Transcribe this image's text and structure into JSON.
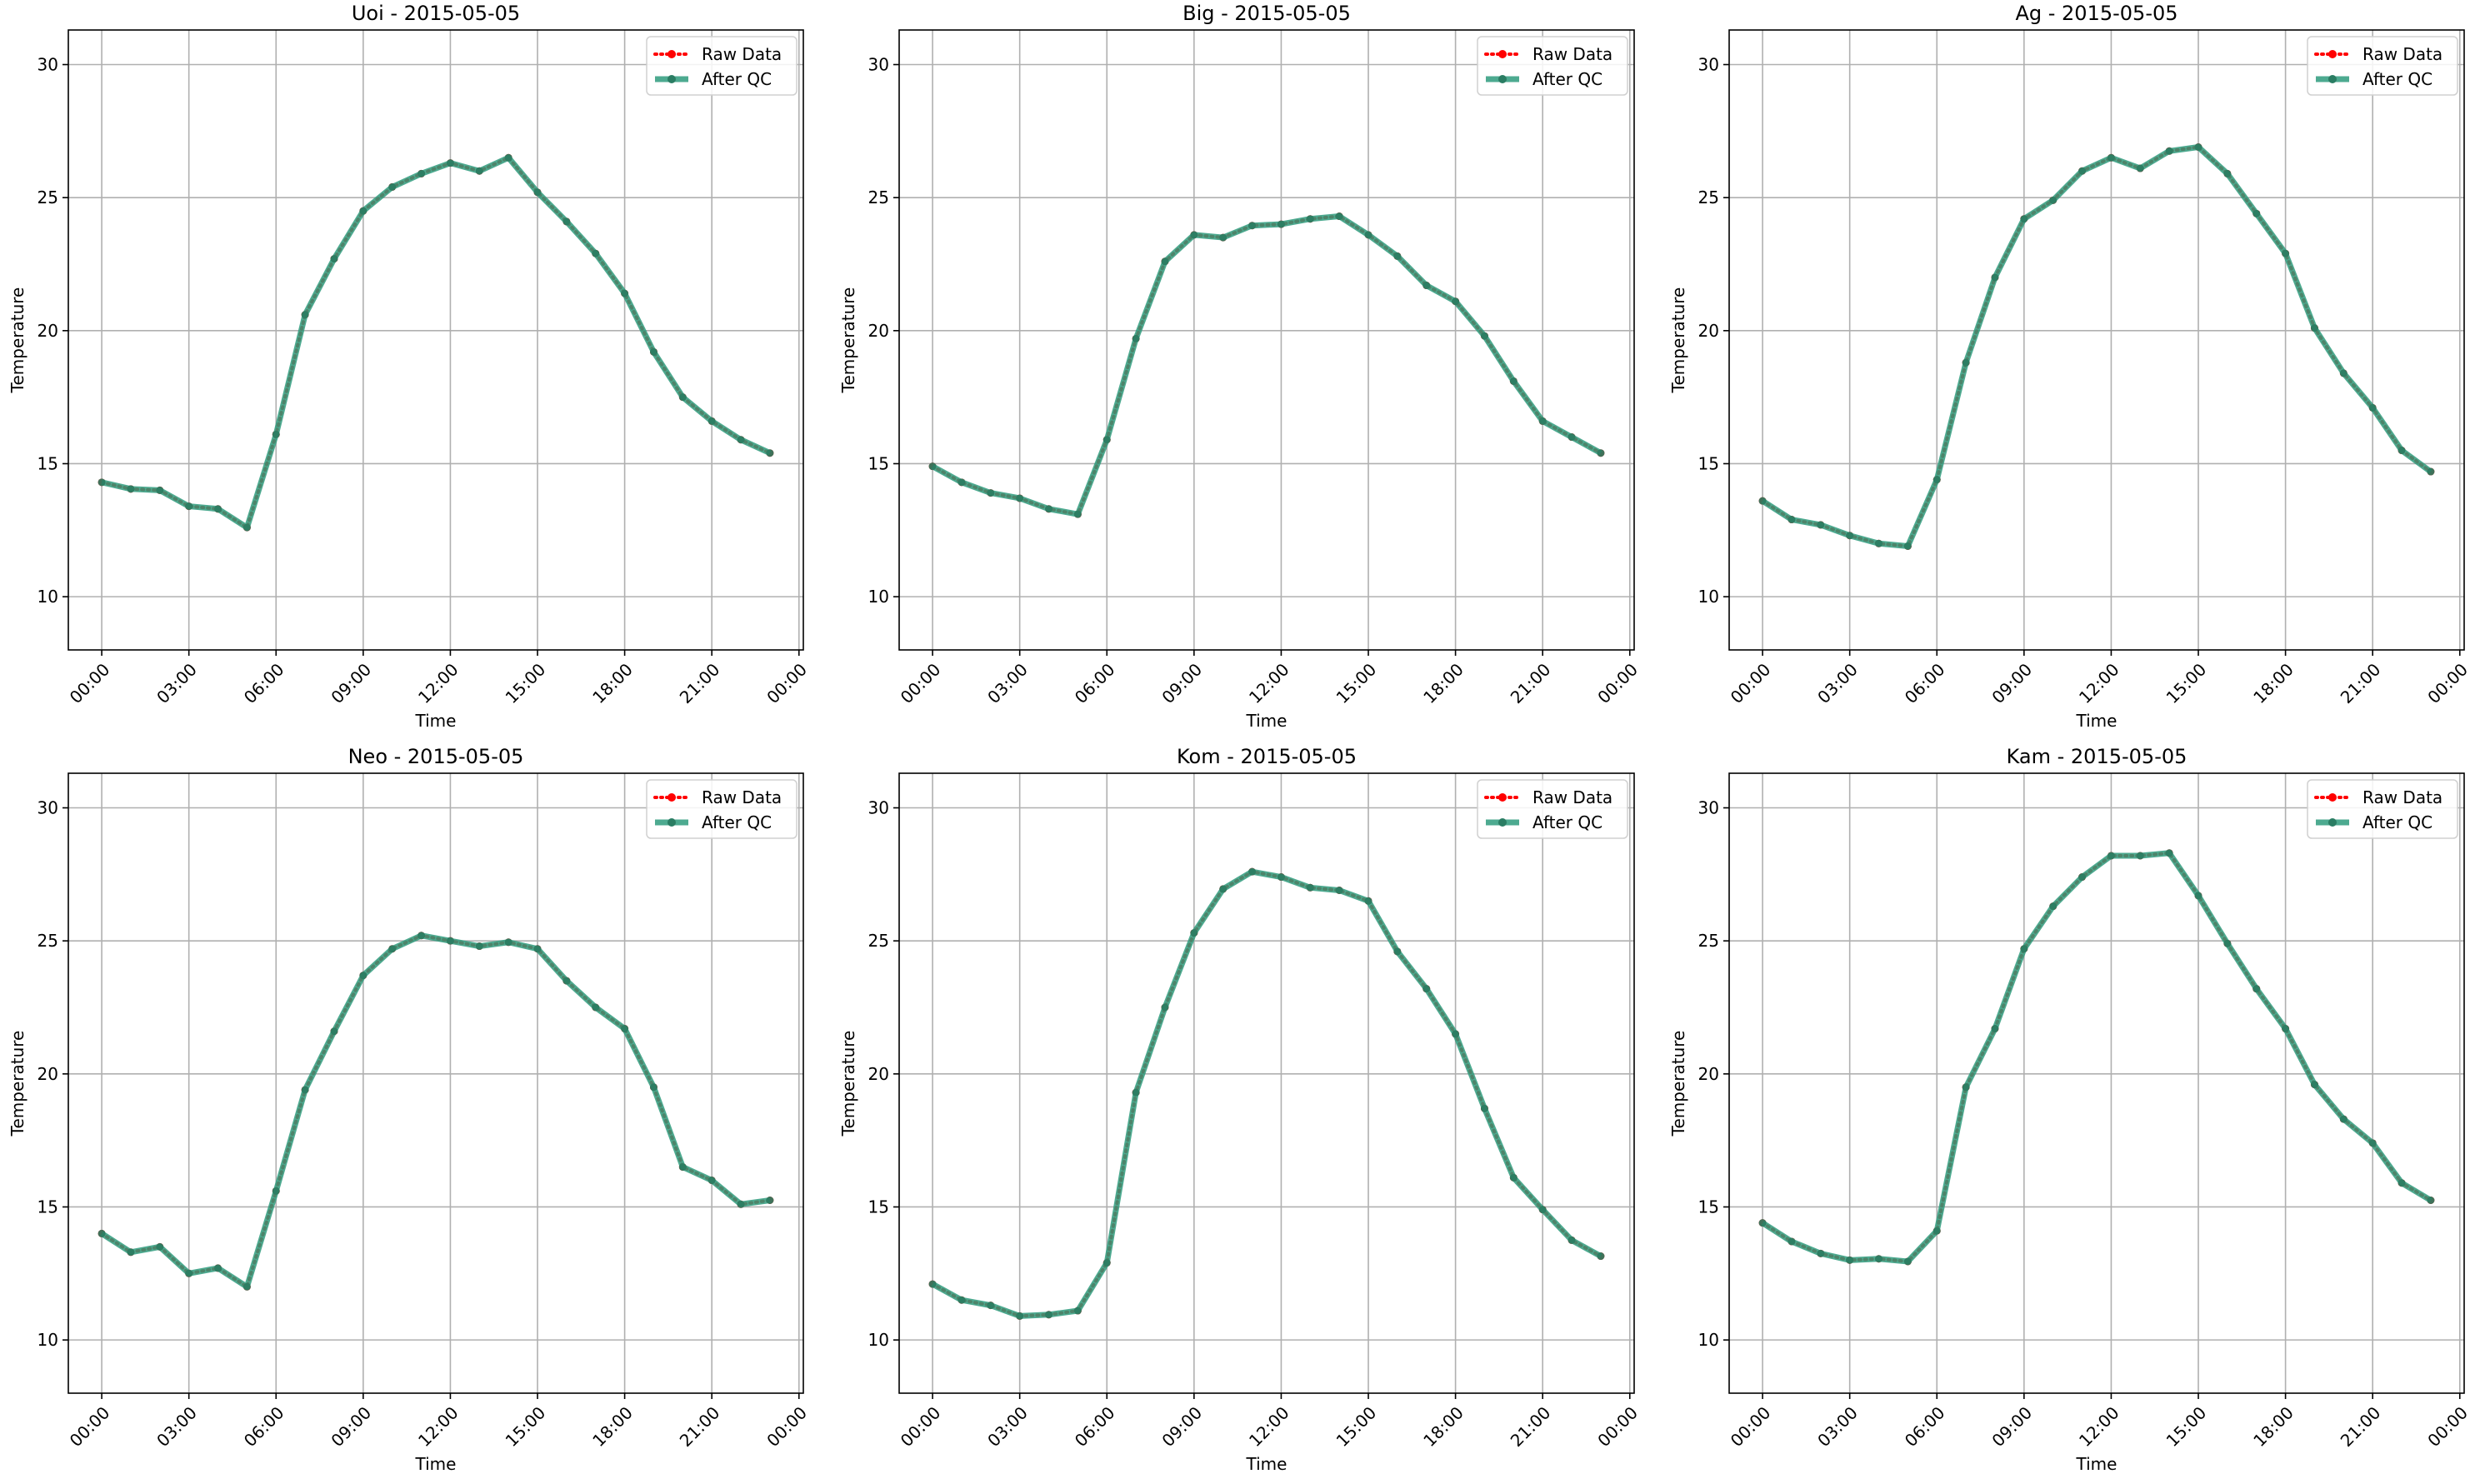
{
  "chart_data": [
    {
      "type": "line",
      "title": "Uoi - 2015-05-05",
      "xlabel": "Time",
      "ylabel": "Temperature",
      "x_ticks": [
        "00:00",
        "03:00",
        "06:00",
        "09:00",
        "12:00",
        "15:00",
        "18:00",
        "21:00",
        "00:00"
      ],
      "y_ticks": [
        "10",
        "15",
        "20",
        "25",
        "30"
      ],
      "ylim": [
        8,
        31.3
      ],
      "xlim_hours": [
        -1.15,
        24.15
      ],
      "grid": true,
      "legend": "top-right",
      "series": [
        {
          "name": "Raw Data",
          "color": "#ff0000",
          "style": "dotted",
          "x": [
            0,
            1,
            2,
            3,
            4,
            5,
            6,
            7,
            8,
            9,
            10,
            11,
            12,
            13,
            14,
            15,
            16,
            17,
            18,
            19,
            20,
            21,
            22,
            23
          ],
          "values": [
            14.3,
            14.05,
            14.0,
            13.4,
            13.3,
            12.6,
            16.1,
            20.6,
            22.7,
            24.5,
            25.4,
            25.9,
            26.3,
            26.0,
            26.5,
            25.2,
            24.1,
            22.9,
            21.4,
            19.2,
            17.5,
            16.6,
            15.9,
            15.4
          ]
        },
        {
          "name": "After QC",
          "color": "#2e9b7c",
          "style": "solid",
          "x": [
            0,
            1,
            2,
            3,
            4,
            5,
            6,
            7,
            8,
            9,
            10,
            11,
            12,
            13,
            14,
            15,
            16,
            17,
            18,
            19,
            20,
            21,
            22,
            23
          ],
          "values": [
            14.3,
            14.05,
            14.0,
            13.4,
            13.3,
            12.6,
            16.1,
            20.6,
            22.7,
            24.5,
            25.4,
            25.9,
            26.3,
            26.0,
            26.5,
            25.2,
            24.1,
            22.9,
            21.4,
            19.2,
            17.5,
            16.6,
            15.9,
            15.4
          ]
        }
      ]
    },
    {
      "type": "line",
      "title": "Big - 2015-05-05",
      "xlabel": "Time",
      "ylabel": "Temperature",
      "x_ticks": [
        "00:00",
        "03:00",
        "06:00",
        "09:00",
        "12:00",
        "15:00",
        "18:00",
        "21:00",
        "00:00"
      ],
      "y_ticks": [
        "10",
        "15",
        "20",
        "25",
        "30"
      ],
      "ylim": [
        8,
        31.3
      ],
      "xlim_hours": [
        -1.15,
        24.15
      ],
      "grid": true,
      "legend": "top-right",
      "series": [
        {
          "name": "Raw Data",
          "color": "#ff0000",
          "style": "dotted",
          "x": [
            0,
            1,
            2,
            3,
            4,
            5,
            6,
            7,
            8,
            9,
            10,
            11,
            12,
            13,
            14,
            15,
            16,
            17,
            18,
            19,
            20,
            21,
            22,
            23
          ],
          "values": [
            14.9,
            14.3,
            13.9,
            13.7,
            13.3,
            13.1,
            15.9,
            19.7,
            22.6,
            23.6,
            23.5,
            23.95,
            24.0,
            24.2,
            24.3,
            23.6,
            22.8,
            21.7,
            21.1,
            19.8,
            18.1,
            16.6,
            16.0,
            15.4
          ]
        },
        {
          "name": "After QC",
          "color": "#2e9b7c",
          "style": "solid",
          "x": [
            0,
            1,
            2,
            3,
            4,
            5,
            6,
            7,
            8,
            9,
            10,
            11,
            12,
            13,
            14,
            15,
            16,
            17,
            18,
            19,
            20,
            21,
            22,
            23
          ],
          "values": [
            14.9,
            14.3,
            13.9,
            13.7,
            13.3,
            13.1,
            15.9,
            19.7,
            22.6,
            23.6,
            23.5,
            23.95,
            24.0,
            24.2,
            24.3,
            23.6,
            22.8,
            21.7,
            21.1,
            19.8,
            18.1,
            16.6,
            16.0,
            15.4
          ]
        }
      ]
    },
    {
      "type": "line",
      "title": "Ag - 2015-05-05",
      "xlabel": "Time",
      "ylabel": "Temperature",
      "x_ticks": [
        "00:00",
        "03:00",
        "06:00",
        "09:00",
        "12:00",
        "15:00",
        "18:00",
        "21:00",
        "00:00"
      ],
      "y_ticks": [
        "10",
        "15",
        "20",
        "25",
        "30"
      ],
      "ylim": [
        8,
        31.3
      ],
      "xlim_hours": [
        -1.15,
        24.15
      ],
      "grid": true,
      "legend": "top-right",
      "series": [
        {
          "name": "Raw Data",
          "color": "#ff0000",
          "style": "dotted",
          "x": [
            0,
            1,
            2,
            3,
            4,
            5,
            6,
            7,
            8,
            9,
            10,
            11,
            12,
            13,
            14,
            15,
            16,
            17,
            18,
            19,
            20,
            21,
            22,
            23
          ],
          "values": [
            13.6,
            12.9,
            12.7,
            12.3,
            12.0,
            11.9,
            14.4,
            18.8,
            22.0,
            24.2,
            24.9,
            26.0,
            26.5,
            26.1,
            26.75,
            26.9,
            25.9,
            24.4,
            22.9,
            20.1,
            18.4,
            17.1,
            15.5,
            14.7
          ]
        },
        {
          "name": "After QC",
          "color": "#2e9b7c",
          "style": "solid",
          "x": [
            0,
            1,
            2,
            3,
            4,
            5,
            6,
            7,
            8,
            9,
            10,
            11,
            12,
            13,
            14,
            15,
            16,
            17,
            18,
            19,
            20,
            21,
            22,
            23
          ],
          "values": [
            13.6,
            12.9,
            12.7,
            12.3,
            12.0,
            11.9,
            14.4,
            18.8,
            22.0,
            24.2,
            24.9,
            26.0,
            26.5,
            26.1,
            26.75,
            26.9,
            25.9,
            24.4,
            22.9,
            20.1,
            18.4,
            17.1,
            15.5,
            14.7
          ]
        }
      ]
    },
    {
      "type": "line",
      "title": "Neo - 2015-05-05",
      "xlabel": "Time",
      "ylabel": "Temperature",
      "x_ticks": [
        "00:00",
        "03:00",
        "06:00",
        "09:00",
        "12:00",
        "15:00",
        "18:00",
        "21:00",
        "00:00"
      ],
      "y_ticks": [
        "10",
        "15",
        "20",
        "25",
        "30"
      ],
      "ylim": [
        8,
        31.3
      ],
      "xlim_hours": [
        -1.15,
        24.15
      ],
      "grid": true,
      "legend": "top-right",
      "series": [
        {
          "name": "Raw Data",
          "color": "#ff0000",
          "style": "dotted",
          "x": [
            0,
            1,
            2,
            3,
            4,
            5,
            6,
            7,
            8,
            9,
            10,
            11,
            12,
            13,
            14,
            15,
            16,
            17,
            18,
            19,
            20,
            21,
            22,
            23
          ],
          "values": [
            14.0,
            13.3,
            13.5,
            12.5,
            12.7,
            12.0,
            15.6,
            19.4,
            21.6,
            23.7,
            24.7,
            25.2,
            25.0,
            24.8,
            24.95,
            24.7,
            23.5,
            22.5,
            21.7,
            19.5,
            16.5,
            16.0,
            15.1,
            15.25
          ]
        },
        {
          "name": "After QC",
          "color": "#2e9b7c",
          "style": "solid",
          "x": [
            0,
            1,
            2,
            3,
            4,
            5,
            6,
            7,
            8,
            9,
            10,
            11,
            12,
            13,
            14,
            15,
            16,
            17,
            18,
            19,
            20,
            21,
            22,
            23
          ],
          "values": [
            14.0,
            13.3,
            13.5,
            12.5,
            12.7,
            12.0,
            15.6,
            19.4,
            21.6,
            23.7,
            24.7,
            25.2,
            25.0,
            24.8,
            24.95,
            24.7,
            23.5,
            22.5,
            21.7,
            19.5,
            16.5,
            16.0,
            15.1,
            15.25
          ]
        }
      ]
    },
    {
      "type": "line",
      "title": "Kom - 2015-05-05",
      "xlabel": "Time",
      "ylabel": "Temperature",
      "x_ticks": [
        "00:00",
        "03:00",
        "06:00",
        "09:00",
        "12:00",
        "15:00",
        "18:00",
        "21:00",
        "00:00"
      ],
      "y_ticks": [
        "10",
        "15",
        "20",
        "25",
        "30"
      ],
      "ylim": [
        8,
        31.3
      ],
      "xlim_hours": [
        -1.15,
        24.15
      ],
      "grid": true,
      "legend": "top-right",
      "series": [
        {
          "name": "Raw Data",
          "color": "#ff0000",
          "style": "dotted",
          "x": [
            0,
            1,
            2,
            3,
            4,
            5,
            6,
            7,
            8,
            9,
            10,
            11,
            12,
            13,
            14,
            15,
            16,
            17,
            18,
            19,
            20,
            21,
            22,
            23
          ],
          "values": [
            12.1,
            11.5,
            11.3,
            10.9,
            10.95,
            11.1,
            12.9,
            19.3,
            22.5,
            25.3,
            26.95,
            27.6,
            27.4,
            27.0,
            26.9,
            26.5,
            24.6,
            23.2,
            21.5,
            18.7,
            16.1,
            14.9,
            13.75,
            13.15
          ]
        },
        {
          "name": "After QC",
          "color": "#2e9b7c",
          "style": "solid",
          "x": [
            0,
            1,
            2,
            3,
            4,
            5,
            6,
            7,
            8,
            9,
            10,
            11,
            12,
            13,
            14,
            15,
            16,
            17,
            18,
            19,
            20,
            21,
            22,
            23
          ],
          "values": [
            12.1,
            11.5,
            11.3,
            10.9,
            10.95,
            11.1,
            12.9,
            19.3,
            22.5,
            25.3,
            26.95,
            27.6,
            27.4,
            27.0,
            26.9,
            26.5,
            24.6,
            23.2,
            21.5,
            18.7,
            16.1,
            14.9,
            13.75,
            13.15
          ]
        }
      ]
    },
    {
      "type": "line",
      "title": "Kam - 2015-05-05",
      "xlabel": "Time",
      "ylabel": "Temperature",
      "x_ticks": [
        "00:00",
        "03:00",
        "06:00",
        "09:00",
        "12:00",
        "15:00",
        "18:00",
        "21:00",
        "00:00"
      ],
      "y_ticks": [
        "10",
        "15",
        "20",
        "25",
        "30"
      ],
      "ylim": [
        8,
        31.3
      ],
      "xlim_hours": [
        -1.15,
        24.15
      ],
      "grid": true,
      "legend": "top-right",
      "series": [
        {
          "name": "Raw Data",
          "color": "#ff0000",
          "style": "dotted",
          "x": [
            0,
            1,
            2,
            3,
            4,
            5,
            6,
            7,
            8,
            9,
            10,
            11,
            12,
            13,
            14,
            15,
            16,
            17,
            18,
            19,
            20,
            21,
            22,
            23
          ],
          "values": [
            14.4,
            13.7,
            13.25,
            13.0,
            13.05,
            12.95,
            14.1,
            19.5,
            21.7,
            24.7,
            26.3,
            27.4,
            28.2,
            28.2,
            28.3,
            26.7,
            24.9,
            23.2,
            21.7,
            19.6,
            18.3,
            17.4,
            15.9,
            15.25
          ]
        },
        {
          "name": "After QC",
          "color": "#2e9b7c",
          "style": "solid",
          "x": [
            0,
            1,
            2,
            3,
            4,
            5,
            6,
            7,
            8,
            9,
            10,
            11,
            12,
            13,
            14,
            15,
            16,
            17,
            18,
            19,
            20,
            21,
            22,
            23
          ],
          "values": [
            14.4,
            13.7,
            13.25,
            13.0,
            13.05,
            12.95,
            14.1,
            19.5,
            21.7,
            24.7,
            26.3,
            27.4,
            28.2,
            28.2,
            28.3,
            26.7,
            24.9,
            23.2,
            21.7,
            19.6,
            18.3,
            17.4,
            15.9,
            15.25
          ]
        }
      ]
    }
  ]
}
